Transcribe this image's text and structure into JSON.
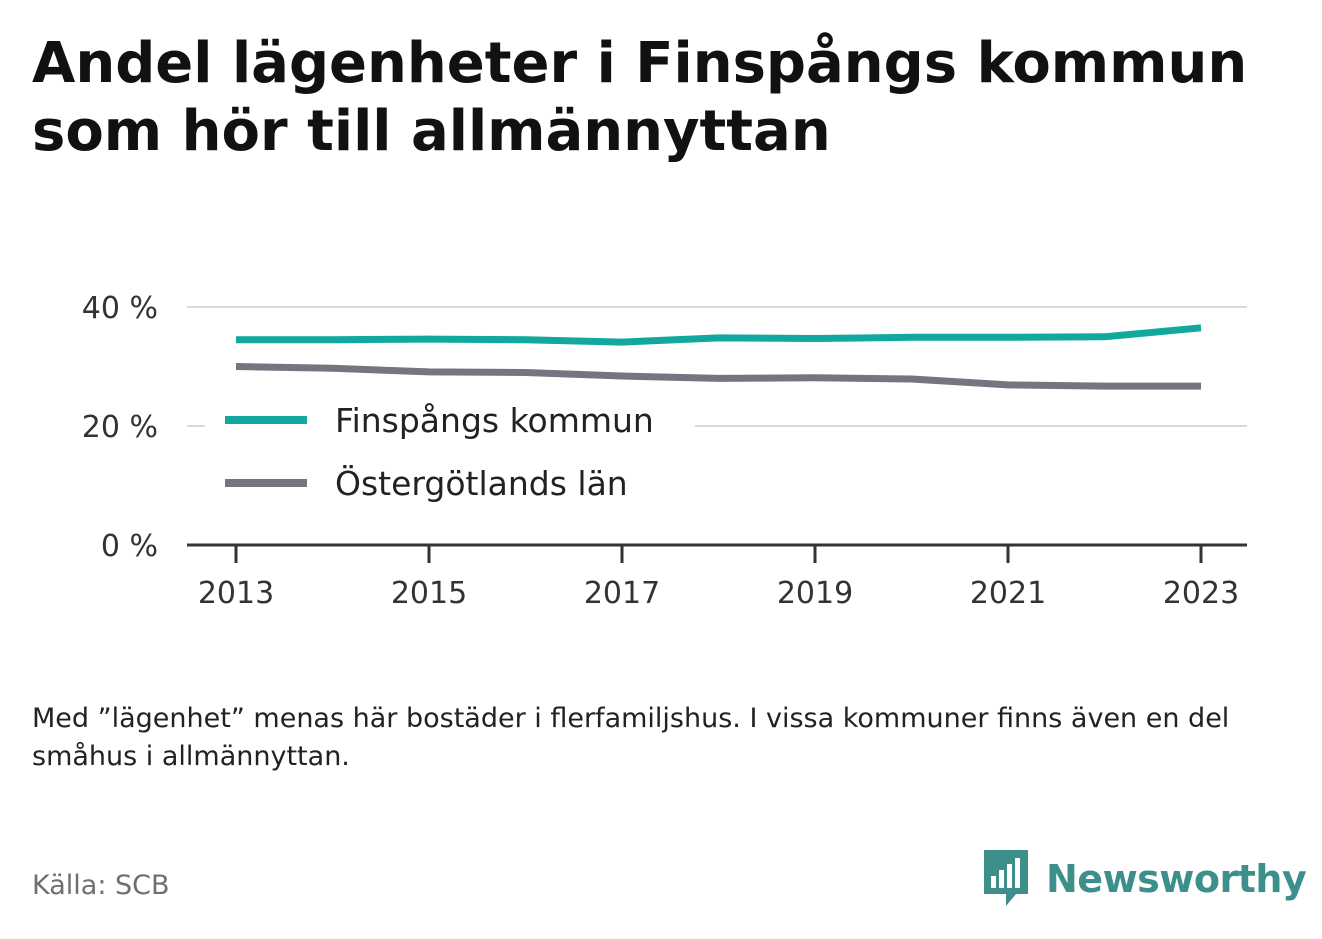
{
  "title": "Andel lägenheter i Finspångs kommun som hör till allmännyttan",
  "note": "Med ”lägenhet” menas här bostäder i flerfamiljshus. I vissa kommuner finns även en del småhus i allmännyttan.",
  "source": "Källa: SCB",
  "brand": {
    "name": "Newsworthy",
    "icon": "newsworthy-logo-icon",
    "color": "#3d8f8b"
  },
  "chart_data": {
    "type": "line",
    "title": "Andel lägenheter i Finspångs kommun som hör till allmännyttan",
    "xlabel": "",
    "ylabel": "",
    "x": [
      2013,
      2014,
      2015,
      2016,
      2017,
      2018,
      2019,
      2020,
      2021,
      2022,
      2023
    ],
    "x_ticks": [
      "2013",
      "2015",
      "2017",
      "2019",
      "2021",
      "2023"
    ],
    "y_ticks": [
      "0 %",
      "20 %",
      "40 %"
    ],
    "ylim": [
      0,
      40
    ],
    "grid": true,
    "legend_position": "inside-left",
    "series": [
      {
        "name": "Finspångs kommun",
        "color": "#12a89d",
        "values": [
          34.5,
          34.5,
          34.6,
          34.5,
          34.1,
          34.8,
          34.7,
          34.9,
          34.9,
          35.0,
          36.5
        ]
      },
      {
        "name": "Östergötlands län",
        "color": "#76757f",
        "values": [
          30.0,
          29.7,
          29.1,
          29.0,
          28.4,
          28.0,
          28.1,
          27.9,
          26.9,
          26.7,
          26.7
        ]
      }
    ]
  }
}
